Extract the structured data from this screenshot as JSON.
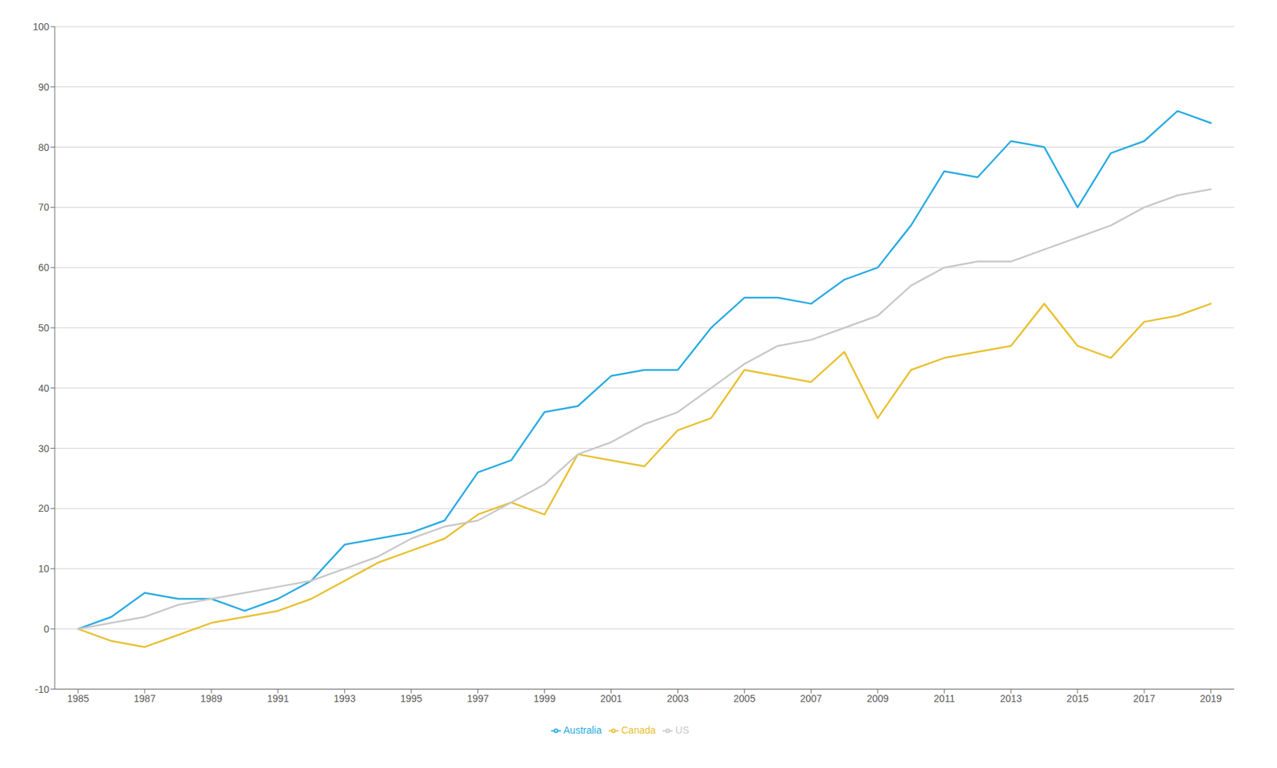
{
  "chart_data": {
    "type": "line",
    "x": [
      1985,
      1986,
      1987,
      1988,
      1989,
      1990,
      1991,
      1992,
      1993,
      1994,
      1995,
      1996,
      1997,
      1998,
      1999,
      2000,
      2001,
      2002,
      2003,
      2004,
      2005,
      2006,
      2007,
      2008,
      2009,
      2010,
      2011,
      2012,
      2013,
      2014,
      2015,
      2016,
      2017,
      2018,
      2019
    ],
    "series": [
      {
        "name": "Australia",
        "color": "#29ABE2",
        "values": [
          0,
          2,
          6,
          5,
          5,
          3,
          5,
          8,
          14,
          15,
          16,
          18,
          26,
          28,
          36,
          37,
          42,
          43,
          43,
          50,
          55,
          55,
          54,
          58,
          60,
          67,
          76,
          75,
          81,
          80,
          70,
          79,
          81,
          86,
          84
        ]
      },
      {
        "name": "Canada",
        "color": "#E8C030",
        "values": [
          0,
          -2,
          -3,
          -1,
          1,
          2,
          3,
          5,
          8,
          11,
          13,
          15,
          19,
          21,
          19,
          29,
          28,
          27,
          33,
          35,
          43,
          42,
          41,
          46,
          35,
          43,
          45,
          46,
          47,
          54,
          47,
          45,
          51,
          52,
          54
        ]
      },
      {
        "name": "US",
        "color": "#C8C8C8",
        "values": [
          0,
          1,
          2,
          4,
          5,
          6,
          7,
          8,
          10,
          12,
          15,
          17,
          18,
          21,
          24,
          29,
          31,
          34,
          36,
          40,
          44,
          47,
          48,
          50,
          52,
          57,
          60,
          61,
          61,
          63,
          65,
          67,
          70,
          72,
          73
        ]
      }
    ],
    "xlim": [
      1984.3,
      2019.7
    ],
    "xticks": [
      1985,
      1987,
      1989,
      1991,
      1993,
      1995,
      1997,
      1999,
      2001,
      2003,
      2005,
      2007,
      2009,
      2011,
      2013,
      2015,
      2017,
      2019
    ],
    "ylim": [
      -10,
      100
    ],
    "yticks": [
      100,
      90,
      80,
      70,
      60,
      50,
      40,
      30,
      20,
      10,
      0,
      -10
    ],
    "grid": true,
    "legend": "bottom"
  }
}
